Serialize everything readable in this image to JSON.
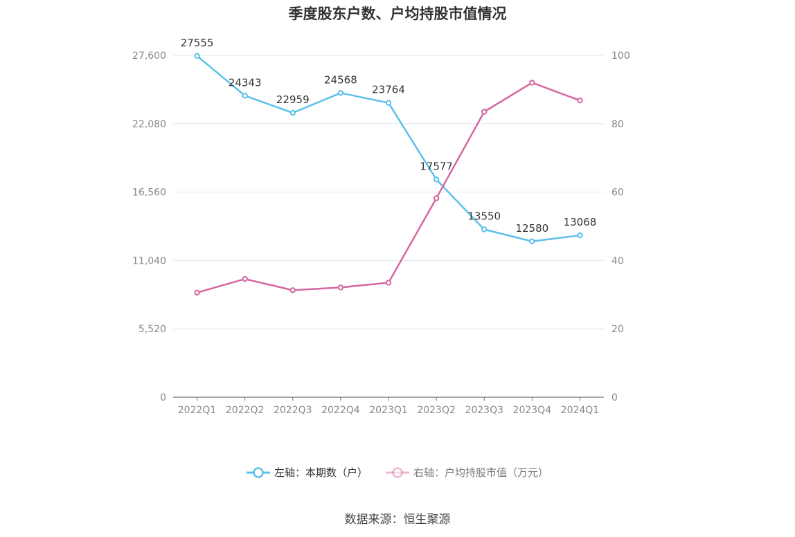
{
  "chart_data": {
    "type": "line",
    "title": "季度股东户数、户均持股市值情况",
    "categories": [
      "2022Q1",
      "2022Q2",
      "2022Q3",
      "2022Q4",
      "2023Q1",
      "2023Q2",
      "2023Q3",
      "2023Q4",
      "2024Q1"
    ],
    "left_axis": {
      "ticks": [
        "0",
        "5,520",
        "11,040",
        "16,560",
        "22,080",
        "27,600"
      ],
      "min": 0,
      "max": 27600
    },
    "right_axis": {
      "ticks": [
        "0",
        "20",
        "40",
        "60",
        "80",
        "100"
      ],
      "min": 0,
      "max": 100
    },
    "series": [
      {
        "name": "左轴：本期数（户）",
        "axis": "left",
        "color": "#5bc0eb",
        "values": [
          27555,
          24343,
          22959,
          24568,
          23764,
          17577,
          13550,
          12580,
          13068
        ],
        "labels": [
          "27555",
          "24343",
          "22959",
          "24568",
          "23764",
          "17577",
          "13550",
          "12580",
          "13068"
        ]
      },
      {
        "name": "右轴：户均持股市值（万元）",
        "axis": "right",
        "color": "#d4679f",
        "values": [
          30.6,
          34.6,
          31.3,
          32.1,
          33.5,
          58.2,
          83.5,
          92.0,
          86.8
        ]
      }
    ],
    "grid": true,
    "legend_position": "bottom"
  },
  "source": "数据来源：恒生聚源"
}
